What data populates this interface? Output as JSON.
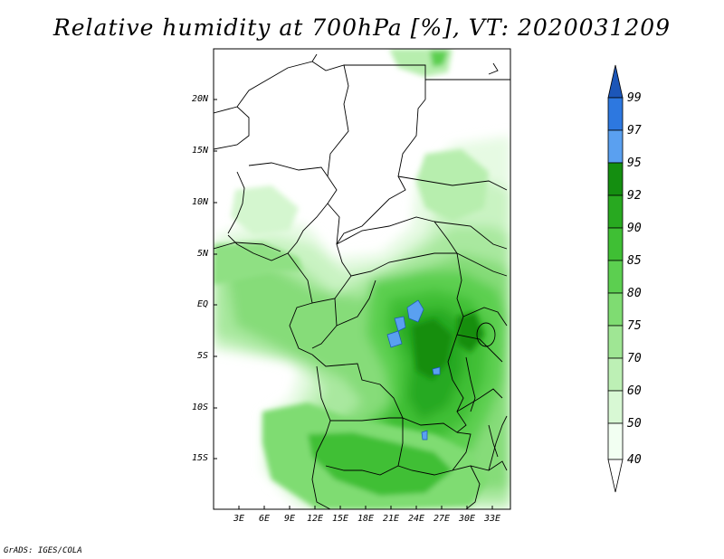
{
  "title": "Relative humidity at 700hPa [%], VT: 2020031209",
  "footer": "GrADS: IGES/COLA",
  "map": {
    "lat_labels": [
      "20N",
      "15N",
      "10N",
      "5N",
      "EQ",
      "5S",
      "10S",
      "15S"
    ],
    "lon_labels": [
      "3E",
      "6E",
      "9E",
      "12E",
      "15E",
      "18E",
      "21E",
      "24E",
      "27E",
      "30E",
      "33E"
    ]
  },
  "colorbar": {
    "labels": [
      "99",
      "97",
      "95",
      "92",
      "90",
      "85",
      "80",
      "75",
      "70",
      "60",
      "50",
      "40"
    ],
    "colors": {
      "c40_50": "#f2fff2",
      "c50_60": "#d8f8d4",
      "c60_70": "#bdf0b5",
      "c70_75": "#9fe694",
      "c75_80": "#7fdc72",
      "c80_85": "#5ccf50",
      "c85_90": "#3fbf34",
      "c90_92": "#28a920",
      "c92_95": "#148e10",
      "c95_97": "#5aa0f0",
      "c97_99": "#2d78e0",
      "c99": "#1c56b8"
    }
  }
}
